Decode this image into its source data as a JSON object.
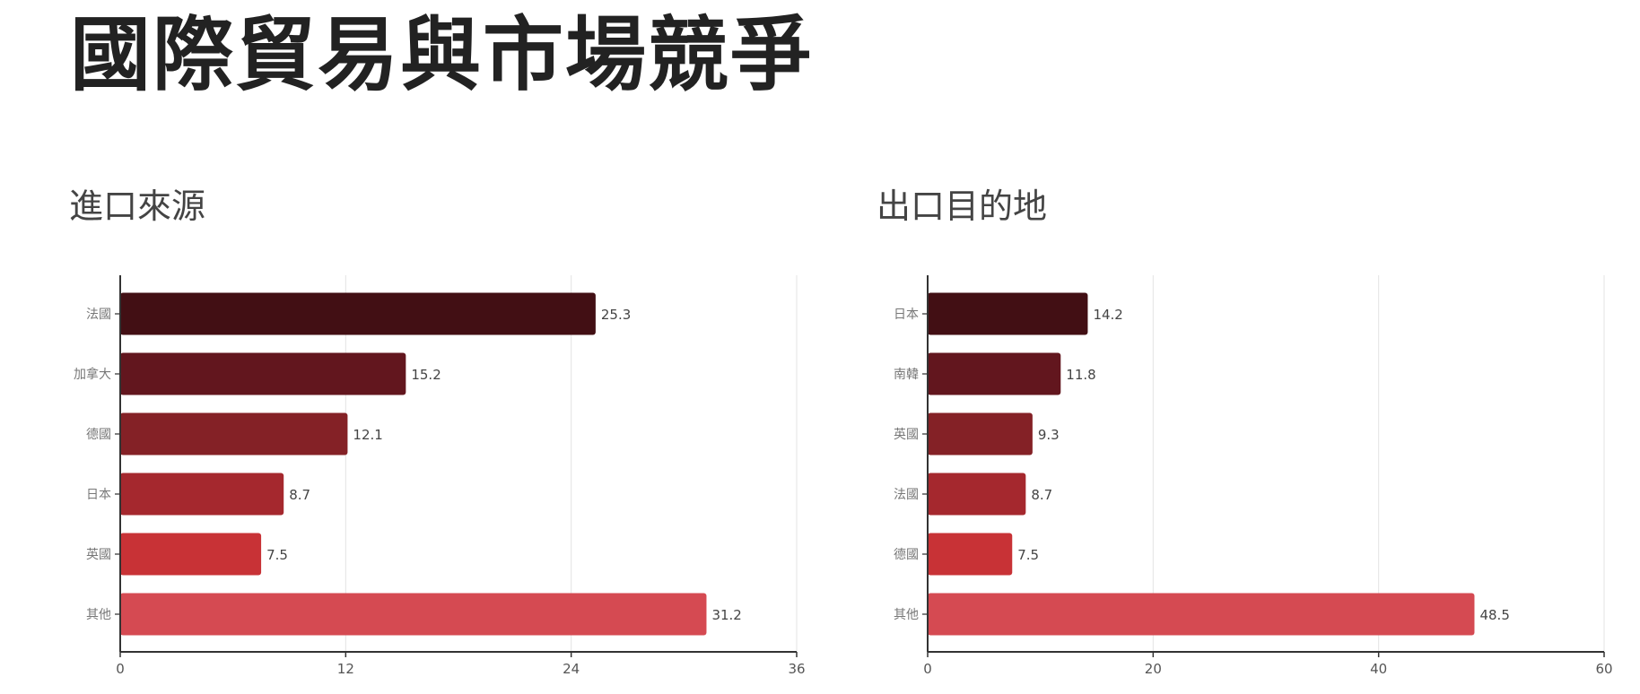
{
  "page": {
    "title": "國際貿易與市場競爭"
  },
  "chart_data": [
    {
      "type": "bar",
      "orientation": "horizontal",
      "title": "進口來源",
      "xlabel": "",
      "ylabel": "",
      "categories": [
        "法國",
        "加拿大",
        "德國",
        "日本",
        "英國",
        "其他"
      ],
      "values": [
        25.3,
        15.2,
        12.1,
        8.7,
        7.5,
        31.2
      ],
      "value_labels": [
        "25.3",
        "15.2",
        "12.1",
        "8.7",
        "7.5",
        "31.2"
      ],
      "xlim": [
        0,
        36
      ],
      "xticks": [
        0,
        12,
        24,
        36
      ],
      "xtick_labels": [
        "0",
        "12",
        "24",
        "36"
      ],
      "grid": true,
      "colors": [
        "#420f14",
        "#62161e",
        "#842126",
        "#a5282e",
        "#c83236",
        "#d54a52"
      ]
    },
    {
      "type": "bar",
      "orientation": "horizontal",
      "title": "出口目的地",
      "xlabel": "",
      "ylabel": "",
      "categories": [
        "日本",
        "南韓",
        "英國",
        "法國",
        "德國",
        "其他"
      ],
      "values": [
        14.2,
        11.8,
        9.3,
        8.7,
        7.5,
        48.5
      ],
      "value_labels": [
        "14.2",
        "11.8",
        "9.3",
        "8.7",
        "7.5",
        "48.5"
      ],
      "xlim": [
        0,
        60
      ],
      "xticks": [
        0,
        20,
        40,
        60
      ],
      "xtick_labels": [
        "0",
        "20",
        "40",
        "60"
      ],
      "grid": true,
      "colors": [
        "#420f14",
        "#62161e",
        "#842126",
        "#a5282e",
        "#c83236",
        "#d54a52"
      ]
    }
  ]
}
